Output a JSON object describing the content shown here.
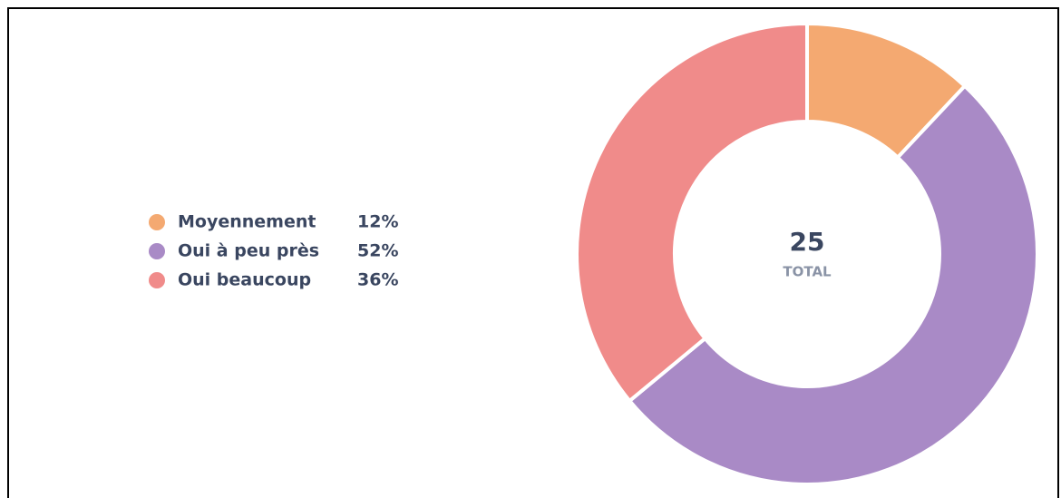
{
  "chart_data": {
    "type": "donut",
    "categories": [
      "Moyennement",
      "Oui à peu près",
      "Oui beaucoup"
    ],
    "values": [
      12,
      52,
      36
    ],
    "value_labels": [
      "12%",
      "52%",
      "36%"
    ],
    "colors": [
      "#f4a971",
      "#a98ac6",
      "#f08b8a"
    ],
    "total": 25,
    "total_label": "TOTAL"
  }
}
